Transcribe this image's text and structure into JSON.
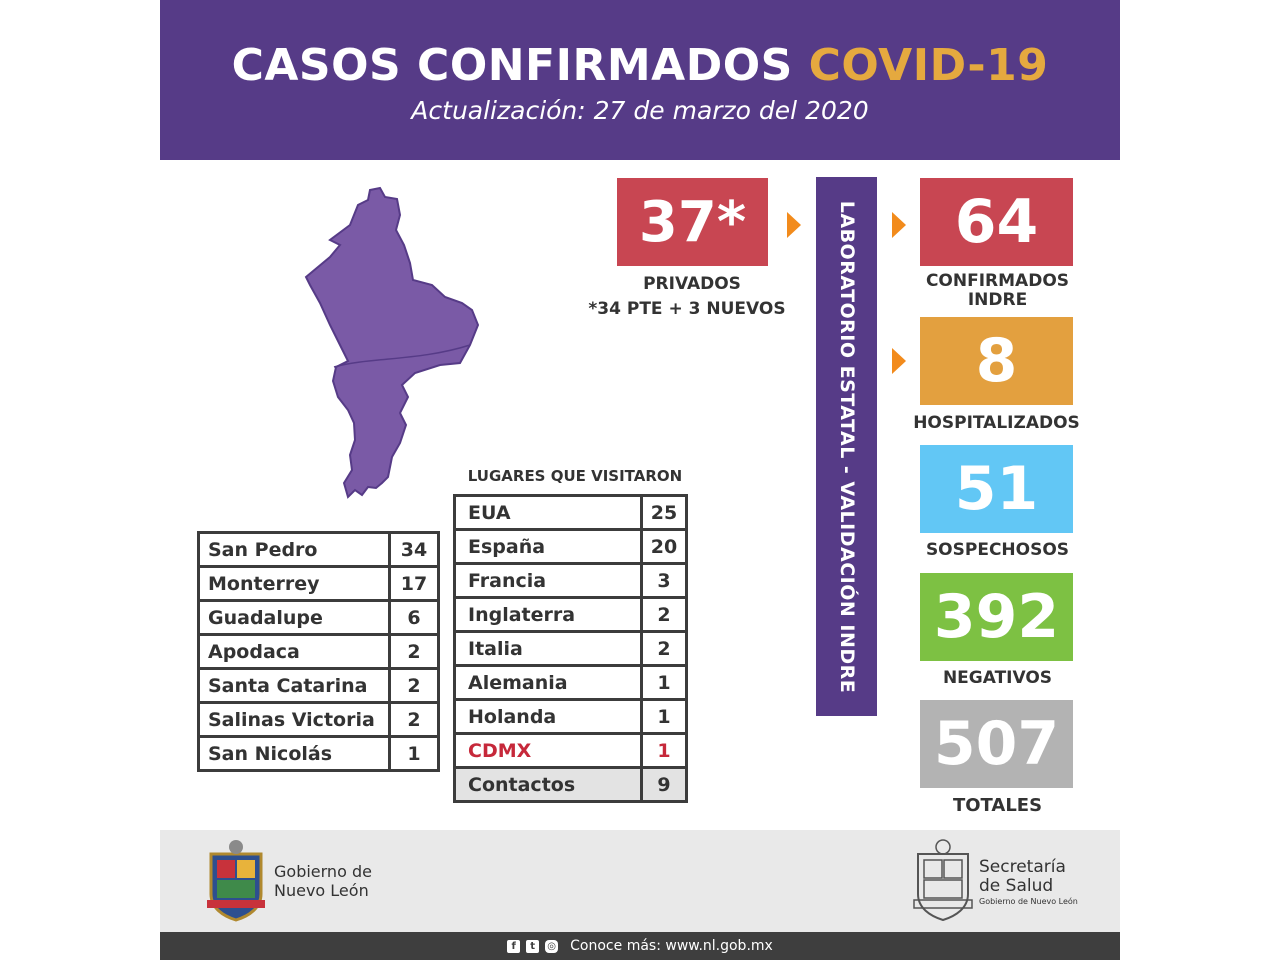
{
  "header": {
    "title_main": "CASOS CONFIRMADOS",
    "title_accent": "COVID-19",
    "subtitle": "Actualización: 27 de marzo del 2020"
  },
  "colors": {
    "purple": "#563b87",
    "red": "#c84652",
    "orange": "#e3a03f",
    "blue": "#62c7f5",
    "green": "#7dc143",
    "gray": "#b3b3b3",
    "arrow": "#f28b1c"
  },
  "stats": {
    "privados": {
      "value": "37*",
      "label": "PRIVADOS",
      "note": "*34 PTE + 3 NUEVOS"
    },
    "lab_band": "LABORATORIO ESTATAL - VALIDACIÓN INDRE",
    "confirmados": {
      "value": "64",
      "label_line1": "CONFIRMADOS",
      "label_line2": "INDRE"
    },
    "hospitalizados": {
      "value": "8",
      "label": "HOSPITALIZADOS"
    },
    "sospechosos": {
      "value": "51",
      "label": "SOSPECHOSOS"
    },
    "negativos": {
      "value": "392",
      "label": "NEGATIVOS"
    },
    "totales": {
      "value": "507",
      "label": "TOTALES"
    }
  },
  "municipios": [
    {
      "name": "San Pedro",
      "count": "34"
    },
    {
      "name": "Monterrey",
      "count": "17"
    },
    {
      "name": "Guadalupe",
      "count": "6"
    },
    {
      "name": "Apodaca",
      "count": "2"
    },
    {
      "name": "Santa Catarina",
      "count": "2"
    },
    {
      "name": "Salinas Victoria",
      "count": "2"
    },
    {
      "name": "San Nicolás",
      "count": "1"
    }
  ],
  "lugares": {
    "title": "LUGARES QUE VISITARON",
    "rows": [
      {
        "name": "EUA",
        "count": "25"
      },
      {
        "name": "España",
        "count": "20"
      },
      {
        "name": "Francia",
        "count": "3"
      },
      {
        "name": "Inglaterra",
        "count": "2"
      },
      {
        "name": "Italia",
        "count": "2"
      },
      {
        "name": "Alemania",
        "count": "1"
      },
      {
        "name": "Holanda",
        "count": "1"
      },
      {
        "name": "CDMX",
        "count": "1"
      },
      {
        "name": "Contactos",
        "count": "9"
      }
    ]
  },
  "footer": {
    "gob_line1": "Gobierno de",
    "gob_line2": "Nuevo León",
    "sec_line1": "Secretaría",
    "sec_line2": "de Salud",
    "sec_line3": "Gobierno de Nuevo León",
    "social": [
      "facebook-icon",
      "twitter-icon",
      "instagram-icon"
    ],
    "link": "Conoce más: www.nl.gob.mx"
  }
}
